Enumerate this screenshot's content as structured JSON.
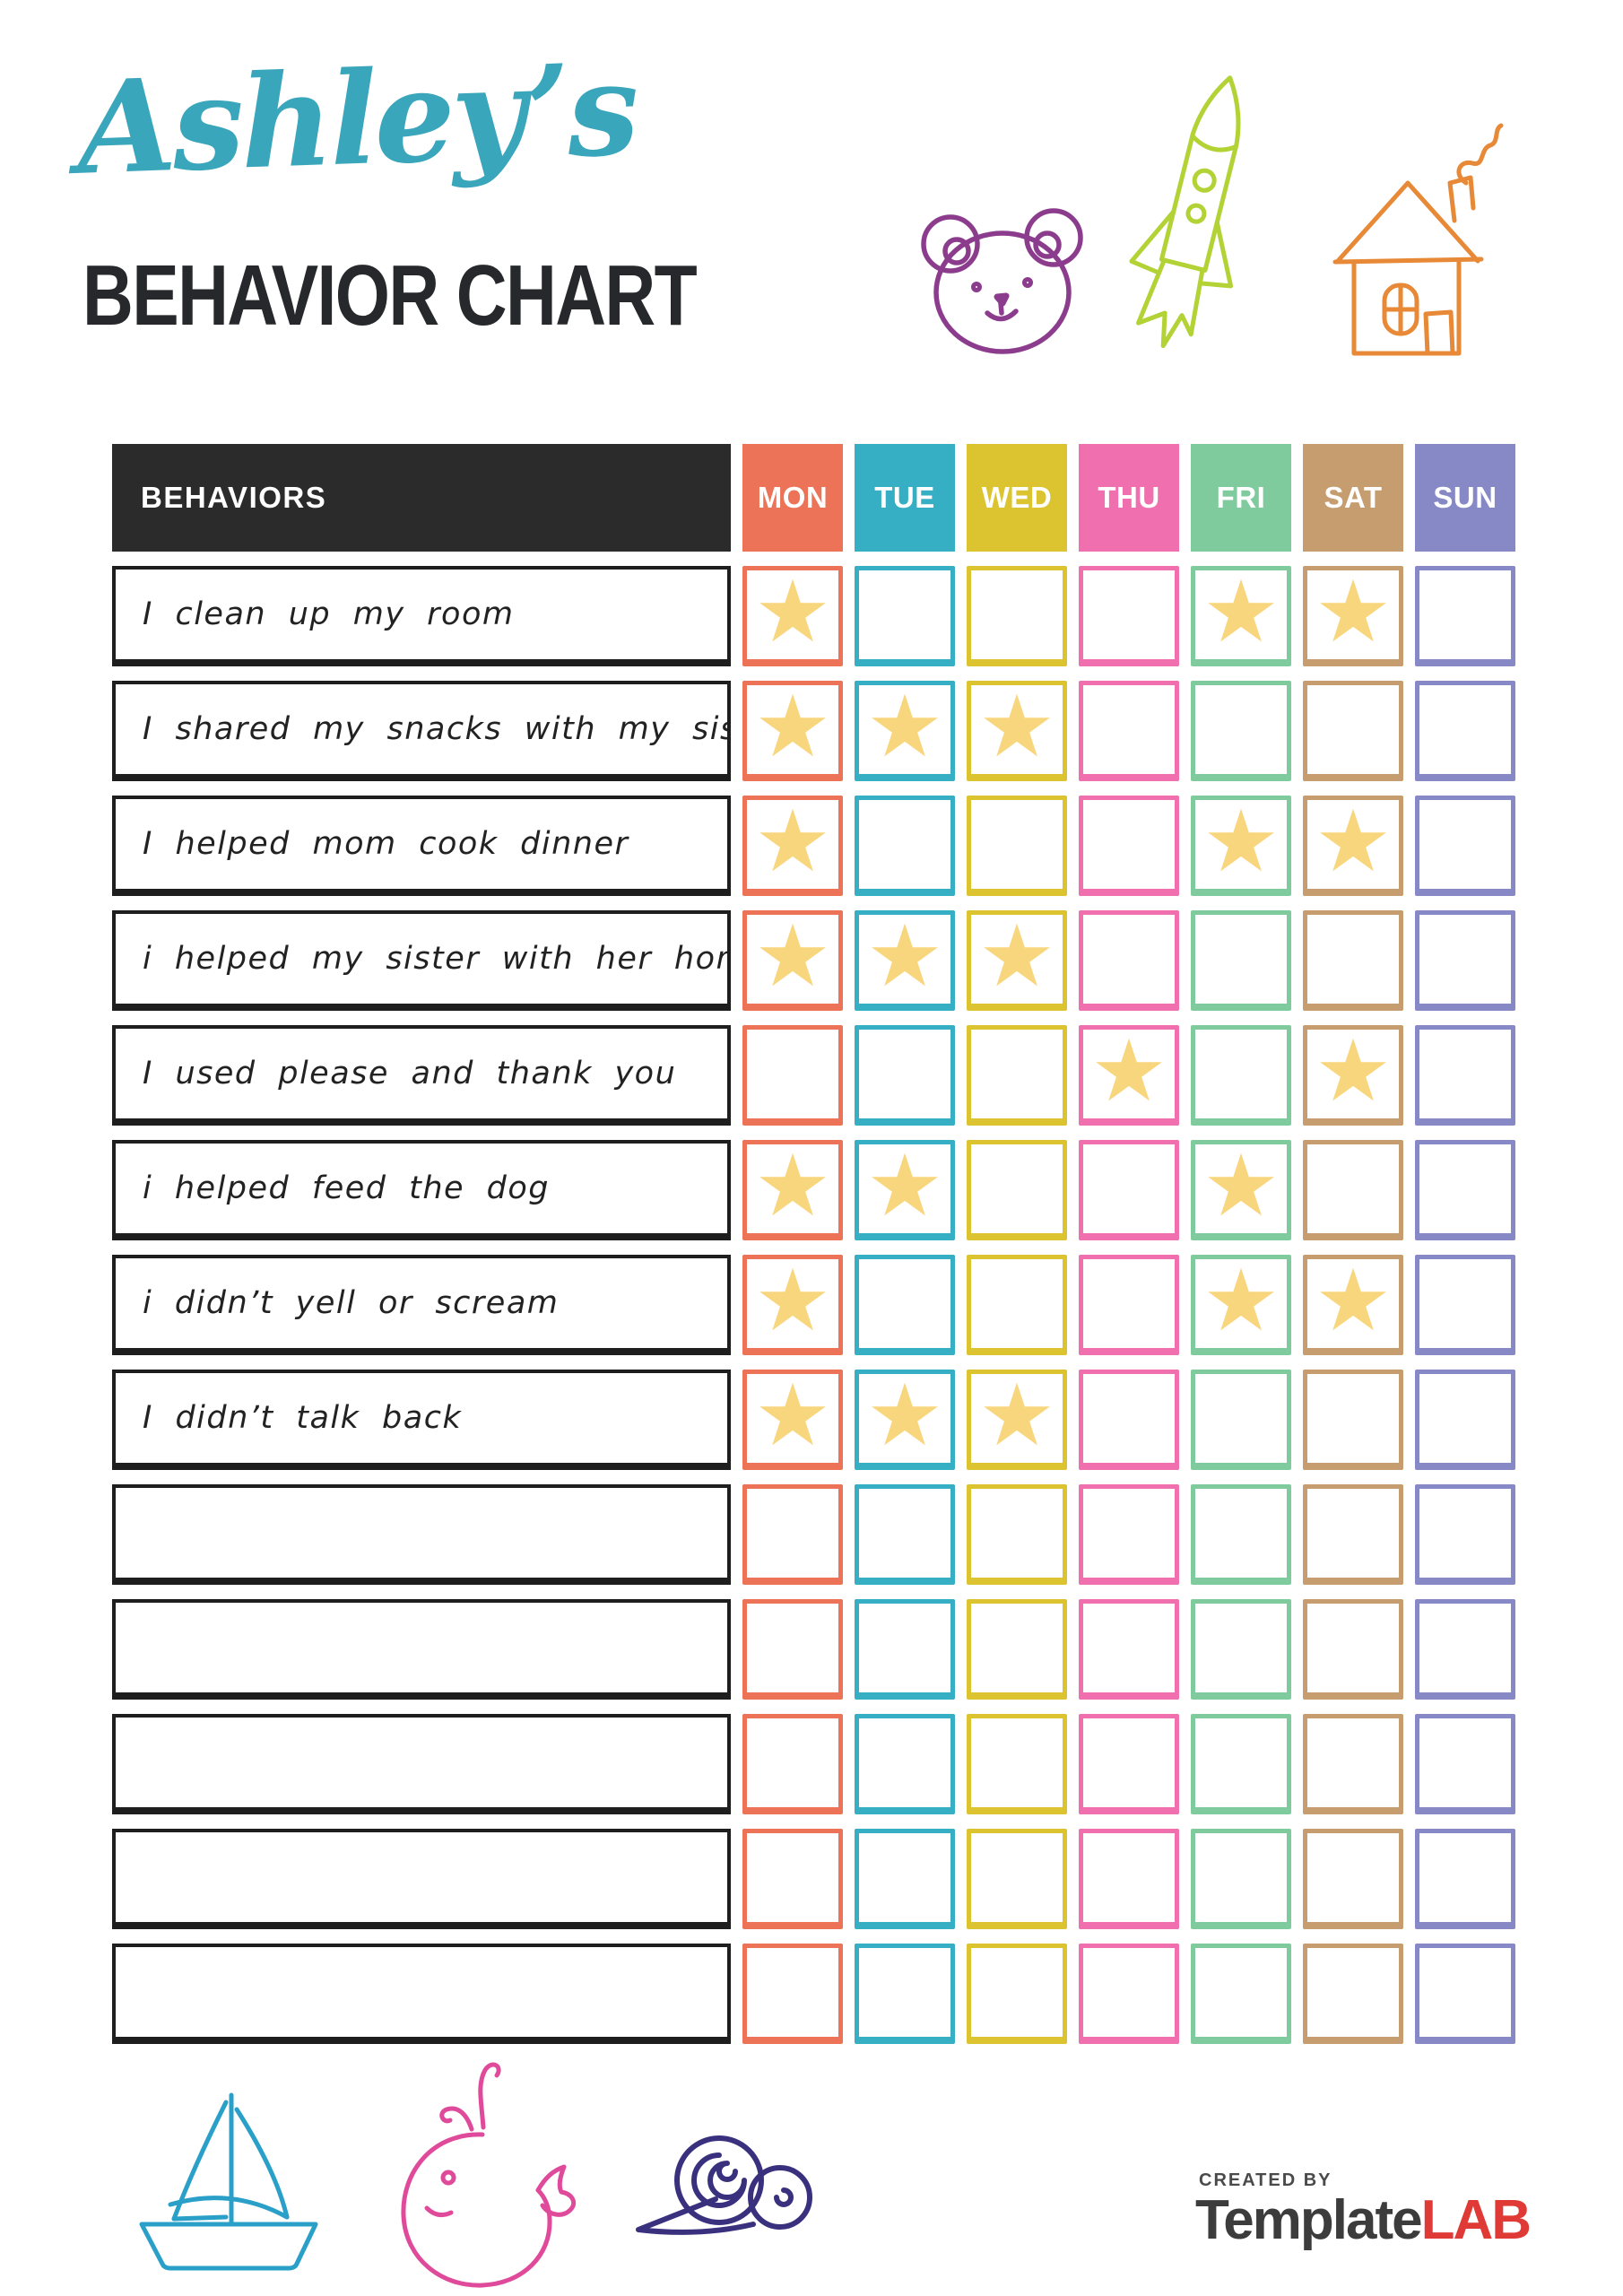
{
  "header": {
    "name": "Ashley’s",
    "title": "BEHAVIOR CHART"
  },
  "table": {
    "behaviors_label": "BEHAVIORS",
    "star_symbol": "★",
    "star_color": "#F8D67D",
    "days": [
      {
        "label": "MON",
        "color": "#EC7357"
      },
      {
        "label": "TUE",
        "color": "#36AEC3"
      },
      {
        "label": "WED",
        "color": "#DCC430"
      },
      {
        "label": "THU",
        "color": "#F06FAE"
      },
      {
        "label": "FRI",
        "color": "#80CB9E"
      },
      {
        "label": "SAT",
        "color": "#C69D6E"
      },
      {
        "label": "SUN",
        "color": "#8689C6"
      }
    ],
    "rows": [
      {
        "behavior": "I clean up my room",
        "stars": [
          "MON",
          "FRI",
          "SAT"
        ]
      },
      {
        "behavior": "I shared my snacks with my sister",
        "stars": [
          "MON",
          "TUE",
          "WED"
        ]
      },
      {
        "behavior": "I helped mom cook dinner",
        "stars": [
          "MON",
          "FRI",
          "SAT"
        ]
      },
      {
        "behavior": "i helped my sister with her homework",
        "stars": [
          "MON",
          "TUE",
          "WED"
        ]
      },
      {
        "behavior": "I used please and thank you",
        "stars": [
          "THU",
          "SAT"
        ]
      },
      {
        "behavior": "i helped feed the dog",
        "stars": [
          "MON",
          "TUE",
          "FRI"
        ]
      },
      {
        "behavior": "i didn’t yell or scream",
        "stars": [
          "MON",
          "FRI",
          "SAT"
        ]
      },
      {
        "behavior": "I didn’t talk back",
        "stars": [
          "MON",
          "TUE",
          "WED"
        ]
      },
      {
        "behavior": "",
        "stars": []
      },
      {
        "behavior": "",
        "stars": []
      },
      {
        "behavior": "",
        "stars": []
      },
      {
        "behavior": "",
        "stars": []
      },
      {
        "behavior": "",
        "stars": []
      }
    ]
  },
  "doodles": {
    "bear_color": "#8C3C8C",
    "rocket_color": "#B2D235",
    "house_color": "#E78936",
    "boat_color": "#2AA0C8",
    "whale_color": "#E04A9B",
    "snail_color": "#39307E"
  },
  "footer": {
    "credit_prefix": "CREATED BY",
    "brand_first": "Template",
    "brand_second": "LAB"
  },
  "colors": {
    "name_script": "#3AA6BB",
    "heading": "#26282B",
    "behaviors_header_bg": "#2B2B2B",
    "row_border": "#1E1E1E",
    "brand_dark": "#3C3C3C",
    "brand_red": "#E03A36"
  }
}
